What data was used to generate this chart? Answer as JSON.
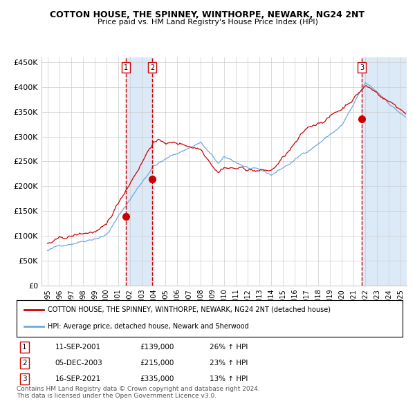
{
  "title": "COTTON HOUSE, THE SPINNEY, WINTHORPE, NEWARK, NG24 2NT",
  "subtitle": "Price paid vs. HM Land Registry's House Price Index (HPI)",
  "ylabel": "",
  "xlabel": "",
  "ylim": [
    0,
    460000
  ],
  "yticks": [
    0,
    50000,
    100000,
    150000,
    200000,
    250000,
    300000,
    350000,
    400000,
    450000
  ],
  "ytick_labels": [
    "£0",
    "£50K",
    "£100K",
    "£150K",
    "£200K",
    "£250K",
    "£300K",
    "£350K",
    "£400K",
    "£450K"
  ],
  "xlim_start": 1994.5,
  "xlim_end": 2025.5,
  "xtick_years": [
    1995,
    1996,
    1997,
    1998,
    1999,
    2000,
    2001,
    2002,
    2003,
    2004,
    2005,
    2006,
    2007,
    2008,
    2009,
    2010,
    2011,
    2012,
    2013,
    2014,
    2015,
    2016,
    2017,
    2018,
    2019,
    2020,
    2021,
    2022,
    2023,
    2024,
    2025
  ],
  "sale1_date": 2001.69,
  "sale1_price": 139000,
  "sale2_date": 2003.92,
  "sale2_price": 215000,
  "sale3_date": 2021.71,
  "sale3_price": 335000,
  "hpi_color": "#6fa8dc",
  "property_color": "#cc0000",
  "marker_color": "#cc0000",
  "vline_color": "#cc0000",
  "shade_color": "#dce9f7",
  "grid_color": "#cccccc",
  "background_color": "#ffffff",
  "legend_label_property": "COTTON HOUSE, THE SPINNEY, WINTHORPE, NEWARK, NG24 2NT (detached house)",
  "legend_label_hpi": "HPI: Average price, detached house, Newark and Sherwood",
  "footer_text": "Contains HM Land Registry data © Crown copyright and database right 2024.\nThis data is licensed under the Open Government Licence v3.0.",
  "table_rows": [
    [
      "1",
      "11-SEP-2001",
      "£139,000",
      "26% ↑ HPI"
    ],
    [
      "2",
      "05-DEC-2003",
      "£215,000",
      "23% ↑ HPI"
    ],
    [
      "3",
      "16-SEP-2021",
      "£335,000",
      "13% ↑ HPI"
    ]
  ]
}
